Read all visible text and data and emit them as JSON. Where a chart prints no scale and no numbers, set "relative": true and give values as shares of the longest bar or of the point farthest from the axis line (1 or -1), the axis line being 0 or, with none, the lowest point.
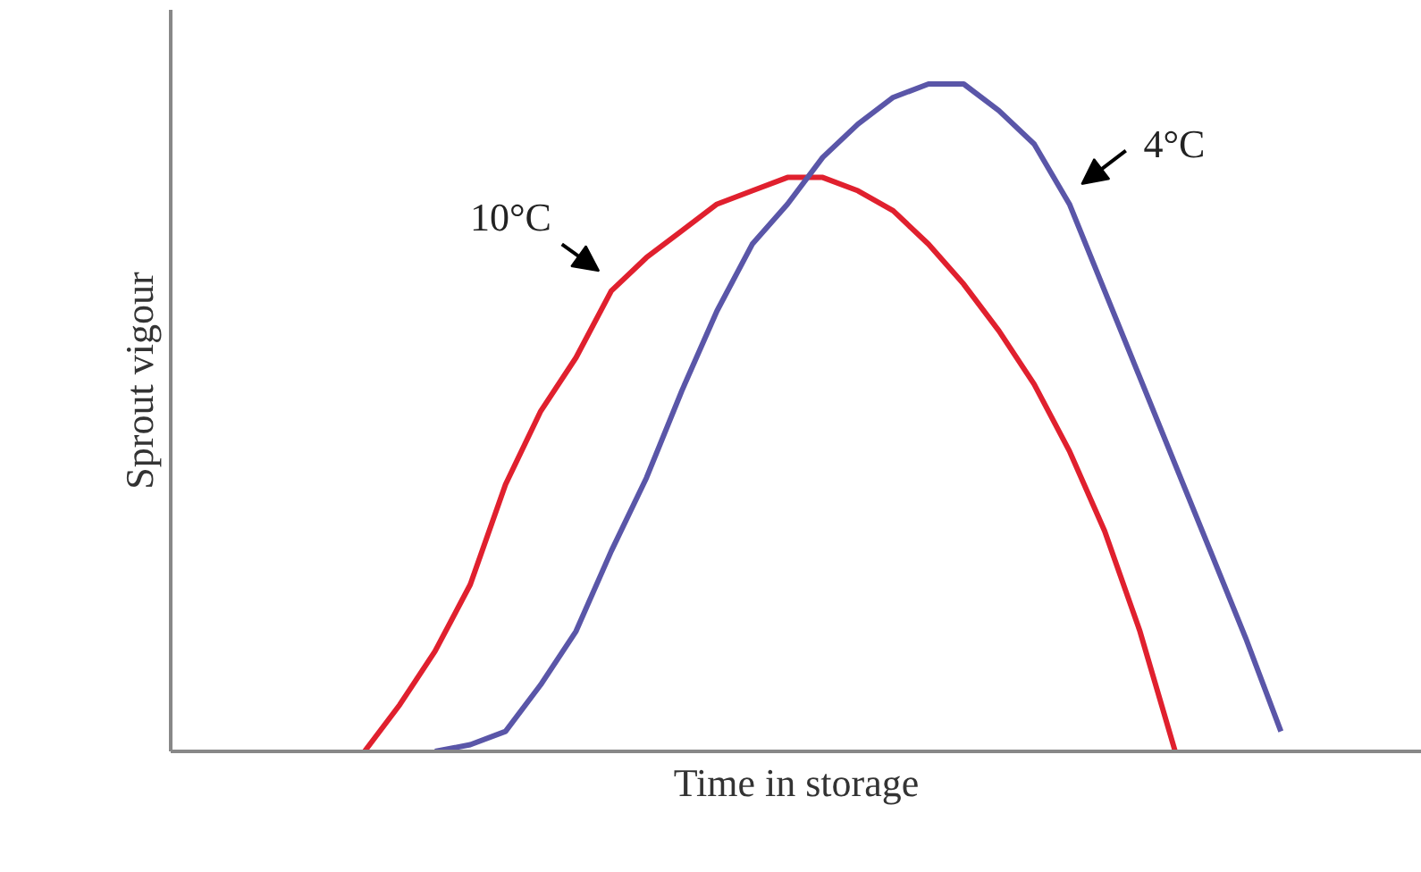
{
  "chart_data": {
    "type": "line",
    "relative": true,
    "xlabel": "Time in storage",
    "ylabel": "Sprout vigour",
    "grid": false,
    "legend": false,
    "marker": "none",
    "line_style": "solid",
    "categories": [
      null,
      null,
      null,
      null,
      null,
      null,
      null,
      null,
      null,
      null,
      null,
      null,
      null,
      null,
      null,
      null,
      null,
      null,
      null,
      null,
      null,
      null,
      null,
      null,
      null,
      null,
      null,
      null,
      null,
      null,
      null,
      null,
      null,
      null,
      null
    ],
    "series": [
      {
        "name": "10°C",
        "color": "#e0202e",
        "values": [
          null,
          null,
          null,
          null,
          null,
          0,
          0.07,
          0.15,
          0.25,
          0.4,
          0.51,
          0.59,
          0.69,
          0.74,
          0.78,
          0.82,
          0.84,
          0.86,
          0.86,
          0.84,
          0.81,
          0.76,
          0.7,
          0.63,
          0.55,
          0.45,
          0.33,
          0.18,
          0,
          null,
          null,
          null,
          null,
          null,
          null
        ]
      },
      {
        "name": "4°C",
        "color": "#5a56a8",
        "values": [
          null,
          null,
          null,
          null,
          null,
          null,
          null,
          0,
          0.01,
          0.03,
          0.1,
          0.18,
          0.3,
          0.41,
          0.54,
          0.66,
          0.76,
          0.82,
          0.89,
          0.94,
          0.98,
          1.0,
          1.0,
          0.96,
          0.91,
          0.82,
          0.69,
          0.56,
          0.43,
          0.3,
          0.17,
          0.03,
          null,
          null,
          null
        ]
      }
    ]
  }
}
